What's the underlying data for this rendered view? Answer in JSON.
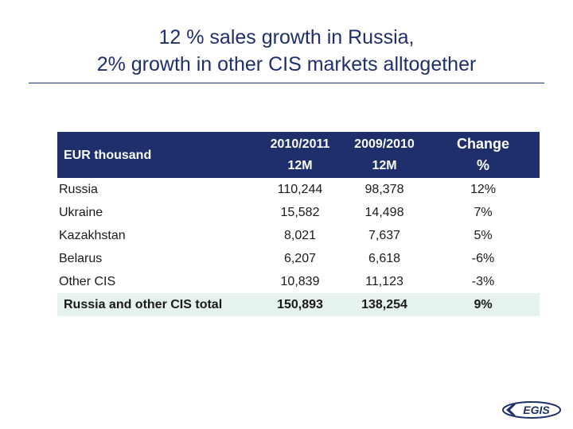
{
  "title": {
    "line1": "12 % sales growth in Russia,",
    "line2": "2% growth in other CIS markets alltogether"
  },
  "table": {
    "header": {
      "label": "EUR thousand",
      "col1_line1": "2010/2011",
      "col1_line2": "12M",
      "col2_line1": "2009/2010",
      "col2_line2": "12M",
      "col3_line1": "Change",
      "col3_line2": "%"
    },
    "rows": [
      {
        "name": "Russia",
        "v2011": "110,244",
        "v2010": "98,378",
        "change": "12%"
      },
      {
        "name": "Ukraine",
        "v2011": "15,582",
        "v2010": "14,498",
        "change": "7%"
      },
      {
        "name": "Kazakhstan",
        "v2011": "8,021",
        "v2010": "7,637",
        "change": "5%"
      },
      {
        "name": "Belarus",
        "v2011": "6,207",
        "v2010": "6,618",
        "change": "-6%"
      },
      {
        "name": "Other CIS",
        "v2011": "10,839",
        "v2010": "11,123",
        "change": "-3%"
      }
    ],
    "total": {
      "name": "Russia and other CIS total",
      "v2011": "150,893",
      "v2010": "138,254",
      "change": "9%"
    }
  },
  "logo": {
    "text": "EGIS"
  },
  "colors": {
    "brand_navy": "#1f2f6b",
    "total_row_bg": "#e6f2f0"
  }
}
